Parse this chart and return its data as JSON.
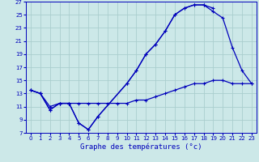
{
  "title": "Graphe des températures (°c)",
  "bg_color": "#cce8e8",
  "grid_color": "#aacece",
  "line_color": "#0000bb",
  "xlim": [
    -0.5,
    23.5
  ],
  "ylim": [
    7,
    27
  ],
  "xticks": [
    0,
    1,
    2,
    3,
    4,
    5,
    6,
    7,
    8,
    9,
    10,
    11,
    12,
    13,
    14,
    15,
    16,
    17,
    18,
    19,
    20,
    21,
    22,
    23
  ],
  "yticks": [
    7,
    9,
    11,
    13,
    15,
    17,
    19,
    21,
    23,
    25,
    27
  ],
  "line1_x": [
    0,
    1,
    2,
    3,
    4,
    5,
    6,
    7,
    10,
    11,
    12,
    13,
    14,
    15,
    16,
    17,
    18,
    19
  ],
  "line1_y": [
    13.5,
    13.0,
    10.5,
    11.5,
    11.5,
    8.5,
    7.5,
    9.5,
    14.5,
    16.5,
    19.0,
    20.5,
    22.5,
    25.0,
    26.0,
    26.5,
    26.5,
    26.0
  ],
  "line2_x": [
    0,
    1,
    2,
    3,
    4,
    5,
    6,
    7,
    10,
    11,
    12,
    13,
    14,
    15,
    16,
    17,
    18,
    19,
    20,
    21,
    22,
    23
  ],
  "line2_y": [
    13.5,
    13.0,
    10.5,
    11.5,
    11.5,
    8.5,
    7.5,
    9.5,
    14.5,
    16.5,
    19.0,
    20.5,
    22.5,
    25.0,
    26.0,
    26.5,
    26.5,
    25.5,
    24.5,
    20.0,
    16.5,
    14.5
  ],
  "line3_x": [
    0,
    1,
    2,
    3,
    4,
    5,
    6,
    7,
    8,
    9,
    10,
    11,
    12,
    13,
    14,
    15,
    16,
    17,
    18,
    19,
    20,
    21,
    22,
    23
  ],
  "line3_y": [
    13.5,
    13.0,
    11.0,
    11.5,
    11.5,
    11.5,
    11.5,
    11.5,
    11.5,
    11.5,
    11.5,
    12.0,
    12.0,
    12.5,
    13.0,
    13.5,
    14.0,
    14.5,
    14.5,
    15.0,
    15.0,
    14.5,
    14.5,
    14.5
  ]
}
